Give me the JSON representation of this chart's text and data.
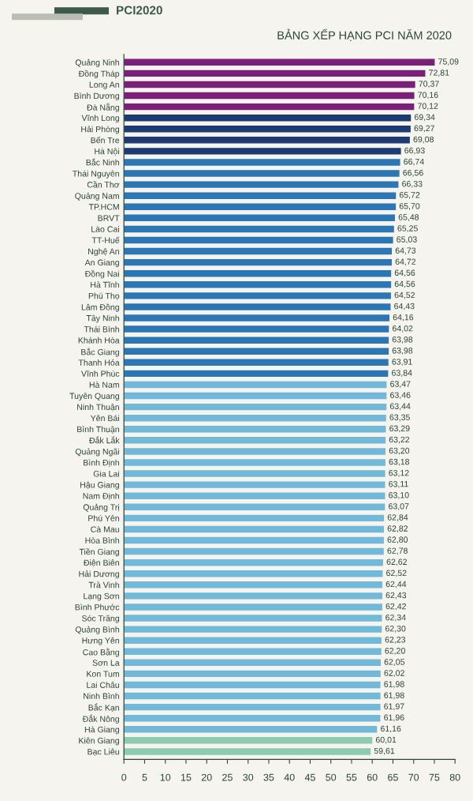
{
  "chart_data": {
    "type": "bar",
    "orientation": "horizontal",
    "title": "BẢNG XẾP HẠNG PCI NĂM 2020",
    "annotations": [
      "PCI2020"
    ],
    "categories": [
      "Quảng Ninh",
      "Đồng Tháp",
      "Long An",
      "Bình Dương",
      "Đà Nẵng",
      "Vĩnh Long",
      "Hải Phòng",
      "Bến Tre",
      "Hà Nội",
      "Bắc Ninh",
      "Thái Nguyên",
      "Cần Thơ",
      "Quảng Nam",
      "TP.HCM",
      "BRVT",
      "Lào Cai",
      "TT-Huế",
      "Nghệ An",
      "An Giang",
      "Đồng Nai",
      "Hà Tĩnh",
      "Phú Thọ",
      "Lâm Đồng",
      "Tây Ninh",
      "Thái Bình",
      "Khánh Hòa",
      "Bắc Giang",
      "Thanh Hóa",
      "Vĩnh Phúc",
      "Hà Nam",
      "Tuyên Quang",
      "Ninh Thuận",
      "Yên Bái",
      "Bình Thuận",
      "Đắk Lắk",
      "Quảng Ngãi",
      "Bình Định",
      "Gia Lai",
      "Hậu Giang",
      "Nam Định",
      "Quảng Trị",
      "Phú Yên",
      "Cà Mau",
      "Hòa Bình",
      "Tiền Giang",
      "Điện Biên",
      "Hải Dương",
      "Trà Vinh",
      "Lạng Sơn",
      "Bình Phước",
      "Sóc Trăng",
      "Quảng Bình",
      "Hưng Yên",
      "Cao Bằng",
      "Sơn La",
      "Kon Tum",
      "Lai Châu",
      "Ninh Bình",
      "Bắc Kạn",
      "Đắk Nông",
      "Hà Giang",
      "Kiên Giang",
      "Bạc Liêu"
    ],
    "values": [
      75.09,
      72.81,
      70.37,
      70.16,
      70.12,
      69.34,
      69.27,
      69.08,
      66.93,
      66.74,
      66.56,
      66.33,
      65.72,
      65.7,
      65.48,
      65.25,
      65.03,
      64.73,
      64.72,
      64.56,
      64.56,
      64.52,
      64.43,
      64.16,
      64.02,
      63.98,
      63.98,
      63.91,
      63.84,
      63.47,
      63.46,
      63.44,
      63.35,
      63.29,
      63.22,
      63.2,
      63.18,
      63.12,
      63.11,
      63.1,
      63.07,
      62.84,
      62.82,
      62.8,
      62.78,
      62.62,
      62.52,
      62.44,
      62.43,
      62.42,
      62.34,
      62.3,
      62.23,
      62.2,
      62.05,
      62.02,
      61.98,
      61.98,
      61.97,
      61.96,
      61.16,
      60.01,
      59.61
    ],
    "value_labels": [
      "75,09",
      "72,81",
      "70,37",
      "70,16",
      "70,12",
      "69,34",
      "69,27",
      "69,08",
      "66,93",
      "66,74",
      "66,56",
      "66,33",
      "65,72",
      "65,70",
      "65,48",
      "65,25",
      "65,03",
      "64,73",
      "64,72",
      "64,56",
      "64,56",
      "64,52",
      "64,43",
      "64,16",
      "64,02",
      "63,98",
      "63,98",
      "63,91",
      "63,84",
      "63,47",
      "63,46",
      "63,44",
      "63,35",
      "63,29",
      "63,22",
      "63,20",
      "63,18",
      "63,12",
      "63,11",
      "63,10",
      "63,07",
      "62,84",
      "62,82",
      "62,80",
      "62,78",
      "62,62",
      "62,52",
      "62,44",
      "62,43",
      "62,42",
      "62,34",
      "62,30",
      "62,23",
      "62,20",
      "62,05",
      "62,02",
      "61,98",
      "61,98",
      "61,97",
      "61,96",
      "61,16",
      "60,01",
      "59,61"
    ],
    "colors": [
      "#7a2079",
      "#7a2079",
      "#7a2079",
      "#7a2079",
      "#7a2079",
      "#1d3a73",
      "#1d3a73",
      "#1d3a73",
      "#1d3a73",
      "#2c76b6",
      "#2c76b6",
      "#2c76b6",
      "#2c76b6",
      "#2c76b6",
      "#2c76b6",
      "#2c76b6",
      "#2c76b6",
      "#2c76b6",
      "#2c76b6",
      "#2c76b6",
      "#2c76b6",
      "#2c76b6",
      "#2c76b6",
      "#2c76b6",
      "#2c76b6",
      "#2c76b6",
      "#2c76b6",
      "#2c76b6",
      "#2c76b6",
      "#72b9d9",
      "#72b9d9",
      "#72b9d9",
      "#72b9d9",
      "#72b9d9",
      "#72b9d9",
      "#72b9d9",
      "#72b9d9",
      "#72b9d9",
      "#72b9d9",
      "#72b9d9",
      "#72b9d9",
      "#72b9d9",
      "#72b9d9",
      "#72b9d9",
      "#72b9d9",
      "#72b9d9",
      "#72b9d9",
      "#72b9d9",
      "#72b9d9",
      "#72b9d9",
      "#72b9d9",
      "#72b9d9",
      "#72b9d9",
      "#72b9d9",
      "#72b9d9",
      "#72b9d9",
      "#72b9d9",
      "#72b9d9",
      "#72b9d9",
      "#72b9d9",
      "#72b9d9",
      "#8ccbb2",
      "#8ccbb2"
    ],
    "xlim": [
      0,
      80
    ],
    "xticks": [
      0,
      5,
      10,
      15,
      20,
      25,
      30,
      35,
      40,
      45,
      50,
      55,
      60,
      65,
      70,
      75,
      80
    ]
  }
}
